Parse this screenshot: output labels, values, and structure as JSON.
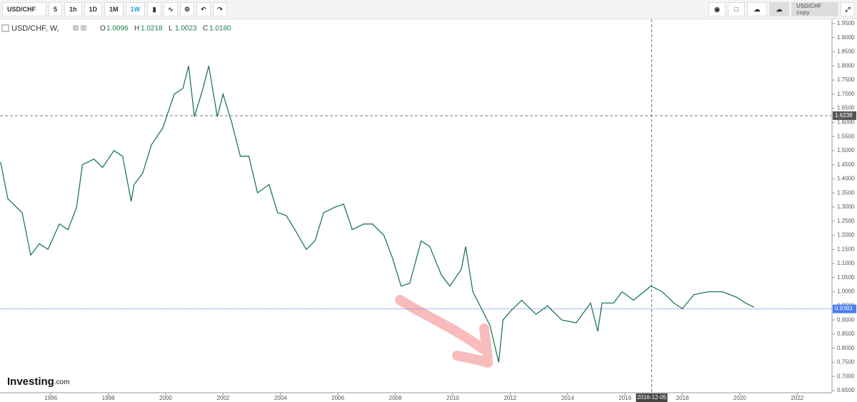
{
  "toolbar": {
    "symbol": "USD/CHF",
    "intervals": [
      "5",
      "1h",
      "1D",
      "1M",
      "1W"
    ],
    "active_interval": 4,
    "layout_name": "USD/CHF copy"
  },
  "legend": {
    "title": "USD/CHF, W,",
    "ohlc": [
      {
        "label": "O",
        "value": "1.0096"
      },
      {
        "label": "H",
        "value": "1.0218"
      },
      {
        "label": "L",
        "value": "1.0023"
      },
      {
        "label": "C",
        "value": "1.0180"
      }
    ]
  },
  "logo": {
    "name": "Investing",
    "suffix": ".com"
  },
  "chart_data": {
    "type": "line",
    "series": [
      {
        "name": "USD/CHF",
        "color": "#1f7a4f",
        "x": [
          1994.25,
          1994.5,
          1994.8,
          1995.0,
          1995.3,
          1995.6,
          1995.9,
          1996.3,
          1996.6,
          1996.9,
          1997.1,
          1997.5,
          1997.8,
          1998.2,
          1998.5,
          1998.8,
          1998.9,
          1999.2,
          1999.5,
          1999.9,
          2000.3,
          2000.6,
          2000.8,
          2001.0,
          2001.3,
          2001.5,
          2001.8,
          2002.0,
          2002.3,
          2002.6,
          2002.9,
          2003.2,
          2003.6,
          2003.9,
          2004.2,
          2004.5,
          2004.9,
          2005.2,
          2005.5,
          2005.9,
          2006.2,
          2006.5,
          2006.9,
          2007.2,
          2007.6,
          2007.9,
          2008.2,
          2008.5,
          2008.9,
          2009.2,
          2009.6,
          2009.9,
          2010.3,
          2010.45,
          2010.7,
          2011.0,
          2011.3,
          2011.6,
          2011.75,
          2012.0,
          2012.4,
          2012.9,
          2013.3,
          2013.8,
          2014.3,
          2014.8,
          2015.05,
          2015.2,
          2015.6,
          2015.9,
          2016.3,
          2016.9,
          2017.3,
          2017.7,
          2018.0,
          2018.4,
          2018.9,
          2019.4,
          2019.9,
          2020.2,
          2020.5
        ],
        "values": [
          1.46,
          1.33,
          1.3,
          1.28,
          1.13,
          1.17,
          1.15,
          1.24,
          1.22,
          1.3,
          1.45,
          1.47,
          1.44,
          1.5,
          1.48,
          1.32,
          1.38,
          1.42,
          1.52,
          1.58,
          1.7,
          1.72,
          1.8,
          1.62,
          1.72,
          1.8,
          1.62,
          1.7,
          1.6,
          1.48,
          1.48,
          1.35,
          1.38,
          1.28,
          1.27,
          1.22,
          1.15,
          1.18,
          1.28,
          1.3,
          1.31,
          1.22,
          1.24,
          1.24,
          1.2,
          1.12,
          1.02,
          1.03,
          1.18,
          1.16,
          1.06,
          1.02,
          1.08,
          1.16,
          1.0,
          0.94,
          0.88,
          0.75,
          0.9,
          0.93,
          0.97,
          0.92,
          0.95,
          0.9,
          0.89,
          0.96,
          0.86,
          0.96,
          0.96,
          1.0,
          0.97,
          1.02,
          1.0,
          0.96,
          0.94,
          0.99,
          1.0,
          1.0,
          0.98,
          0.96,
          0.945
        ]
      }
    ],
    "xlim": [
      1994.23,
      2023.21
    ],
    "xticks": [
      1996,
      1998,
      2000,
      2002,
      2004,
      2006,
      2008,
      2010,
      2012,
      2014,
      2016,
      2018,
      2020,
      2022
    ],
    "ylim": [
      0.65,
      1.95
    ],
    "yticks": [
      {
        "value": 0.65,
        "label": "0.6500"
      },
      {
        "value": 0.7,
        "label": "0.7000"
      },
      {
        "value": 0.75,
        "label": "0.7500"
      },
      {
        "value": 0.8,
        "label": "0.8000"
      },
      {
        "value": 0.85,
        "label": "0.8500"
      },
      {
        "value": 0.9,
        "label": "0.9000"
      },
      {
        "value": 0.95,
        "label": "0.9500"
      },
      {
        "value": 1.0,
        "label": "1.0000"
      },
      {
        "value": 1.05,
        "label": "1.0500"
      },
      {
        "value": 1.1,
        "label": "1.1000"
      },
      {
        "value": 1.15,
        "label": "1.1500"
      },
      {
        "value": 1.2,
        "label": "1.2000"
      },
      {
        "value": 1.25,
        "label": "1.2500"
      },
      {
        "value": 1.3,
        "label": "1.3000"
      },
      {
        "value": 1.35,
        "label": "1.3500"
      },
      {
        "value": 1.4,
        "label": "1.4000"
      },
      {
        "value": 1.45,
        "label": "1.4500"
      },
      {
        "value": 1.5,
        "label": "1.5000"
      },
      {
        "value": 1.55,
        "label": "1.5500"
      },
      {
        "value": 1.6,
        "label": "1.6000"
      },
      {
        "value": 1.65,
        "label": "1.6500"
      },
      {
        "value": 1.7,
        "label": "1.7000"
      },
      {
        "value": 1.75,
        "label": "1.7500"
      },
      {
        "value": 1.8,
        "label": "1.8000"
      },
      {
        "value": 1.85,
        "label": "1.8500"
      },
      {
        "value": 1.9,
        "label": "1.9000"
      },
      {
        "value": 1.95,
        "label": "1.9500"
      }
    ],
    "crosshair": {
      "price": {
        "value": 1.6238,
        "label": "1.6238"
      },
      "date": "2016-12-05"
    },
    "last_price": {
      "value": 0.9393,
      "label": "0.9393",
      "color": "#4a7cf0"
    }
  }
}
